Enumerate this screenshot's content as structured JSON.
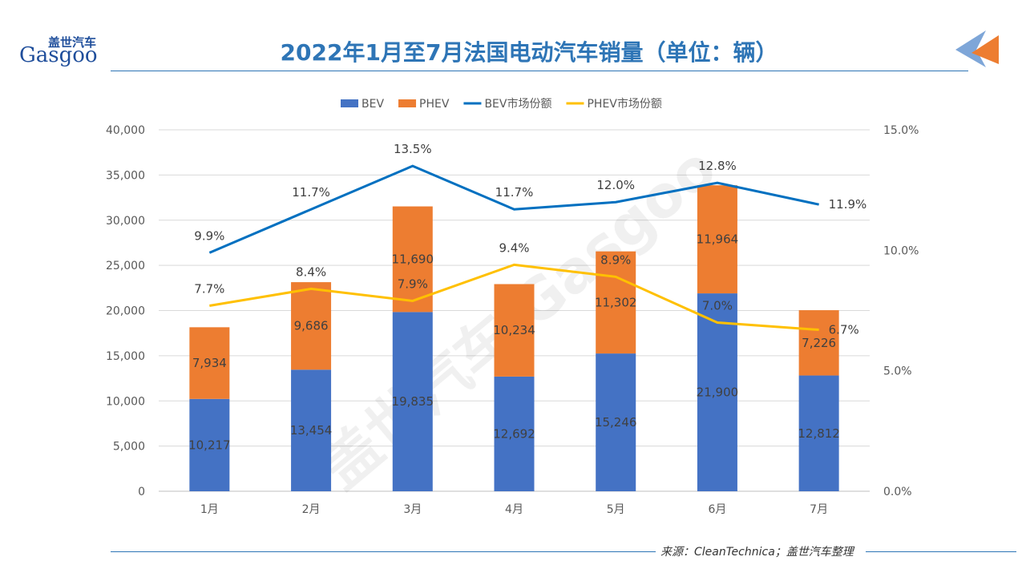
{
  "header": {
    "title": "2022年1月至7月法国电动汽车销量（单位：辆）"
  },
  "logo": {
    "cn": "盖世汽车",
    "en": "Gasgoo"
  },
  "watermark": "盖世汽车 Gasgoo",
  "footer": {
    "source": "来源：CleanTechnica；盖世汽车整理"
  },
  "chart_data": {
    "type": "bar+line",
    "categories": [
      "1月",
      "2月",
      "3月",
      "4月",
      "5月",
      "6月",
      "7月"
    ],
    "series": [
      {
        "name": "BEV",
        "type": "stacked-bar",
        "axis": "left",
        "color": "#4472c4",
        "values": [
          10217,
          13454,
          19835,
          12692,
          15246,
          21900,
          12812
        ],
        "labels": [
          "10,217",
          "13,454",
          "19,835",
          "12,692",
          "15,246",
          "21,900",
          "12,812"
        ]
      },
      {
        "name": "PHEV",
        "type": "stacked-bar",
        "axis": "left",
        "color": "#ed7d31",
        "values": [
          7934,
          9686,
          11690,
          10234,
          11302,
          11964,
          7226
        ],
        "labels": [
          "7,934",
          "9,686",
          "11,690",
          "10,234",
          "11,302",
          "11,964",
          "7,226"
        ]
      },
      {
        "name": "BEV市场份额",
        "type": "line",
        "axis": "right",
        "color": "#0070c0",
        "values": [
          9.9,
          11.7,
          13.5,
          11.7,
          12.0,
          12.8,
          11.9
        ],
        "labels": [
          "9.9%",
          "11.7%",
          "13.5%",
          "11.7%",
          "12.0%",
          "12.8%",
          "11.9%"
        ]
      },
      {
        "name": "PHEV市场份额",
        "type": "line",
        "axis": "right",
        "color": "#ffc000",
        "values": [
          7.7,
          8.4,
          7.9,
          9.4,
          8.9,
          7.0,
          6.7
        ],
        "labels": [
          "7.7%",
          "8.4%",
          "7.9%",
          "9.4%",
          "8.9%",
          "7.0%",
          "6.7%"
        ]
      }
    ],
    "left_axis": {
      "ylim": [
        0,
        40000
      ],
      "ticks": [
        "0",
        "5,000",
        "10,000",
        "15,000",
        "20,000",
        "25,000",
        "30,000",
        "35,000",
        "40,000"
      ]
    },
    "right_axis": {
      "ylim": [
        0,
        15
      ],
      "ticks": [
        "0.0%",
        "5.0%",
        "10.0%",
        "15.0%"
      ]
    },
    "grid": true,
    "legend": "top"
  }
}
